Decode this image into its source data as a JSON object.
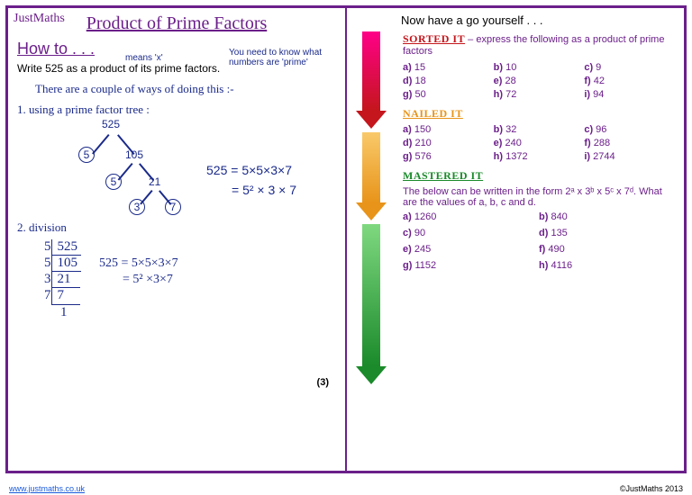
{
  "logo": "JustMaths",
  "title": "Product of Prime Factors",
  "howto": "How to . . .",
  "instruction": "Write 525 as a product of its prime factors.",
  "annot_means": "means 'x'",
  "annot_need": "You need to know what numbers are 'prime'",
  "hand_intro": "There are a couple of ways of doing this :-",
  "method1_label": "1. using a prime factor tree :",
  "tree_root": "525",
  "tree_nodes": [
    "5",
    "105",
    "5",
    "21",
    "3",
    "7"
  ],
  "result1a": "525 = 5×5×3×7",
  "result1b": "= 5² × 3 × 7",
  "method2_label": "2. division",
  "div_rows": [
    {
      "d": "5",
      "n": "525"
    },
    {
      "d": "5",
      "n": "105"
    },
    {
      "d": "3",
      "n": "21"
    },
    {
      "d": "7",
      "n": "7"
    }
  ],
  "div_last": "1",
  "result2a": "525 = 5×5×3×7",
  "result2b": "= 5² ×3×7",
  "marks": "(3)",
  "right_header": "Now have a go yourself . . .",
  "sorted": {
    "heading": "SORTED  IT",
    "tail": "– express the following as a product of prime factors",
    "items": [
      {
        "l": "a)",
        "v": "15"
      },
      {
        "l": "b)",
        "v": "10"
      },
      {
        "l": "c)",
        "v": "9"
      },
      {
        "l": "d)",
        "v": "18"
      },
      {
        "l": "e)",
        "v": "28"
      },
      {
        "l": "f)",
        "v": "42"
      },
      {
        "l": "g)",
        "v": "50"
      },
      {
        "l": "h)",
        "v": "72"
      },
      {
        "l": "i)",
        "v": "94"
      }
    ]
  },
  "nailed": {
    "heading": "NAILED IT",
    "items": [
      {
        "l": "a)",
        "v": "150"
      },
      {
        "l": "b)",
        "v": "32"
      },
      {
        "l": "c)",
        "v": "96"
      },
      {
        "l": "d)",
        "v": "210"
      },
      {
        "l": "e)",
        "v": "240"
      },
      {
        "l": "f)",
        "v": "288"
      },
      {
        "l": "g)",
        "v": "576"
      },
      {
        "l": "h)",
        "v": "1372"
      },
      {
        "l": "i)",
        "v": "2744"
      }
    ]
  },
  "mastered": {
    "heading": "MASTERED IT",
    "text": "The below can be written in the form 2ᵃ x 3ᵇ x 5ᶜ x 7ᵈ. What are the values of a, b, c and d.",
    "items": [
      {
        "l": "a)",
        "v": "1260"
      },
      {
        "l": "b)",
        "v": "840"
      },
      {
        "l": "c)",
        "v": "90"
      },
      {
        "l": "d)",
        "v": "135"
      },
      {
        "l": "e)",
        "v": "245"
      },
      {
        "l": "f)",
        "v": "490"
      },
      {
        "l": "g)",
        "v": "1152"
      },
      {
        "l": "h)",
        "v": "4116"
      }
    ]
  },
  "footer_link": "www.justmaths.co.uk",
  "footer_copy": "©JustMaths 2013"
}
